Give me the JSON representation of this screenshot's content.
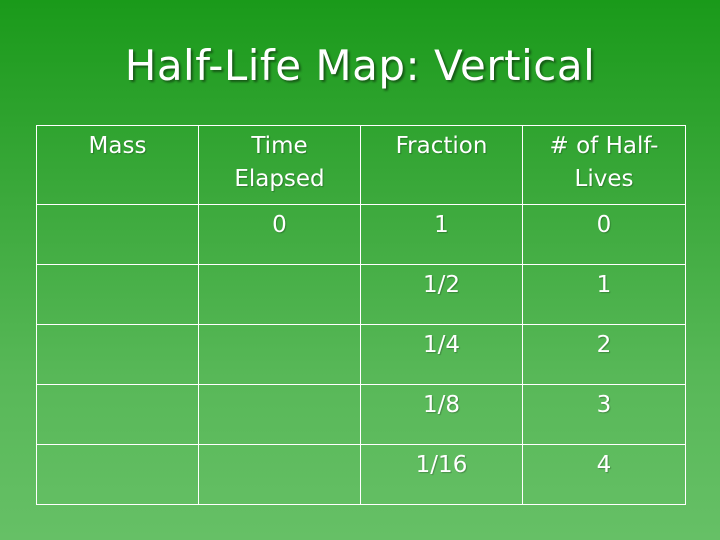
{
  "slide": {
    "title": "Half-Life Map:  Vertical"
  },
  "table": {
    "headers": [
      "Mass",
      "Time Elapsed",
      "Fraction",
      "# of Half-Lives"
    ],
    "rows": [
      [
        "",
        "0",
        "1",
        "0"
      ],
      [
        "",
        "",
        "1/2",
        "1"
      ],
      [
        "",
        "",
        "1/4",
        "2"
      ],
      [
        "",
        "",
        "1/8",
        "3"
      ],
      [
        "",
        "",
        "1/16",
        "4"
      ]
    ]
  },
  "colors": {
    "background_top": "#1a9a1a",
    "background_bottom": "#66c066",
    "text": "#ffffff",
    "grid_lines": "#ffffff"
  }
}
